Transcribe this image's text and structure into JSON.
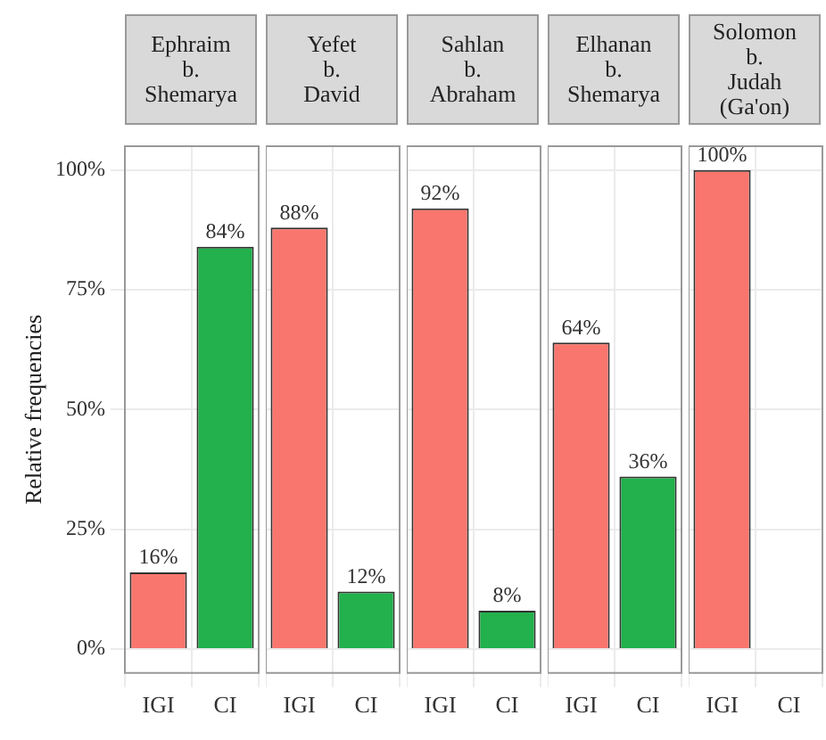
{
  "chart_data": [
    {
      "type": "bar",
      "title": "Ephraim\nb.\nShemarya",
      "ylabel": "Relative frequencies",
      "categories": [
        "IGI",
        "CI"
      ],
      "values": [
        16,
        84
      ],
      "colors": [
        "#f8766d",
        "#22b14c"
      ],
      "value_labels": [
        "16%",
        "84%"
      ],
      "ylim": [
        -5,
        105
      ],
      "yticks": [
        {
          "value": 0,
          "label": "0%"
        },
        {
          "value": 25,
          "label": "25%"
        },
        {
          "value": 50,
          "label": "50%"
        },
        {
          "value": 75,
          "label": "75%"
        },
        {
          "value": 100,
          "label": "100%"
        }
      ],
      "grid": true
    },
    {
      "type": "bar",
      "title": "Yefet\nb.\nDavid",
      "categories": [
        "IGI",
        "CI"
      ],
      "values": [
        88,
        12
      ],
      "colors": [
        "#f8766d",
        "#22b14c"
      ],
      "value_labels": [
        "88%",
        "12%"
      ],
      "ylim": [
        -5,
        105
      ],
      "yticks": [
        {
          "value": 0,
          "label": null
        },
        {
          "value": 25,
          "label": null
        },
        {
          "value": 50,
          "label": null
        },
        {
          "value": 75,
          "label": null
        },
        {
          "value": 100,
          "label": null
        }
      ],
      "grid": true,
      "tick_labels": "x"
    },
    {
      "type": "bar",
      "title": "Sahlan\nb.\nAbraham",
      "categories": [
        "IGI",
        "CI"
      ],
      "values": [
        92,
        8
      ],
      "colors": [
        "#f8766d",
        "#22b14c"
      ],
      "value_labels": [
        "92%",
        "8%"
      ],
      "ylim": [
        -5,
        105
      ],
      "yticks": [
        {
          "value": 0,
          "label": null
        },
        {
          "value": 25,
          "label": null
        },
        {
          "value": 50,
          "label": null
        },
        {
          "value": 75,
          "label": null
        },
        {
          "value": 100,
          "label": null
        }
      ],
      "grid": true,
      "tick_labels": "x"
    },
    {
      "type": "bar",
      "title": "Elhanan\nb.\nShemarya",
      "categories": [
        "IGI",
        "CI"
      ],
      "values": [
        64,
        36
      ],
      "colors": [
        "#f8766d",
        "#22b14c"
      ],
      "value_labels": [
        "64%",
        "36%"
      ],
      "ylim": [
        -5,
        105
      ],
      "yticks": [
        {
          "value": 0,
          "label": null
        },
        {
          "value": 25,
          "label": null
        },
        {
          "value": 50,
          "label": null
        },
        {
          "value": 75,
          "label": null
        },
        {
          "value": 100,
          "label": null
        }
      ],
      "grid": true,
      "tick_labels": "x"
    },
    {
      "type": "bar",
      "title": "Solomon\nb.\nJudah\n(Ga'on)",
      "categories": [
        "IGI",
        "CI"
      ],
      "values": [
        100,
        null
      ],
      "colors": [
        "#f8766d",
        "#22b14c"
      ],
      "value_labels": [
        "100%",
        null
      ],
      "ylim": [
        -5,
        105
      ],
      "yticks": [
        {
          "value": 0,
          "label": null
        },
        {
          "value": 25,
          "label": null
        },
        {
          "value": 50,
          "label": null
        },
        {
          "value": 75,
          "label": null
        },
        {
          "value": 100,
          "label": null
        }
      ],
      "grid": true,
      "tick_labels": "x"
    }
  ]
}
